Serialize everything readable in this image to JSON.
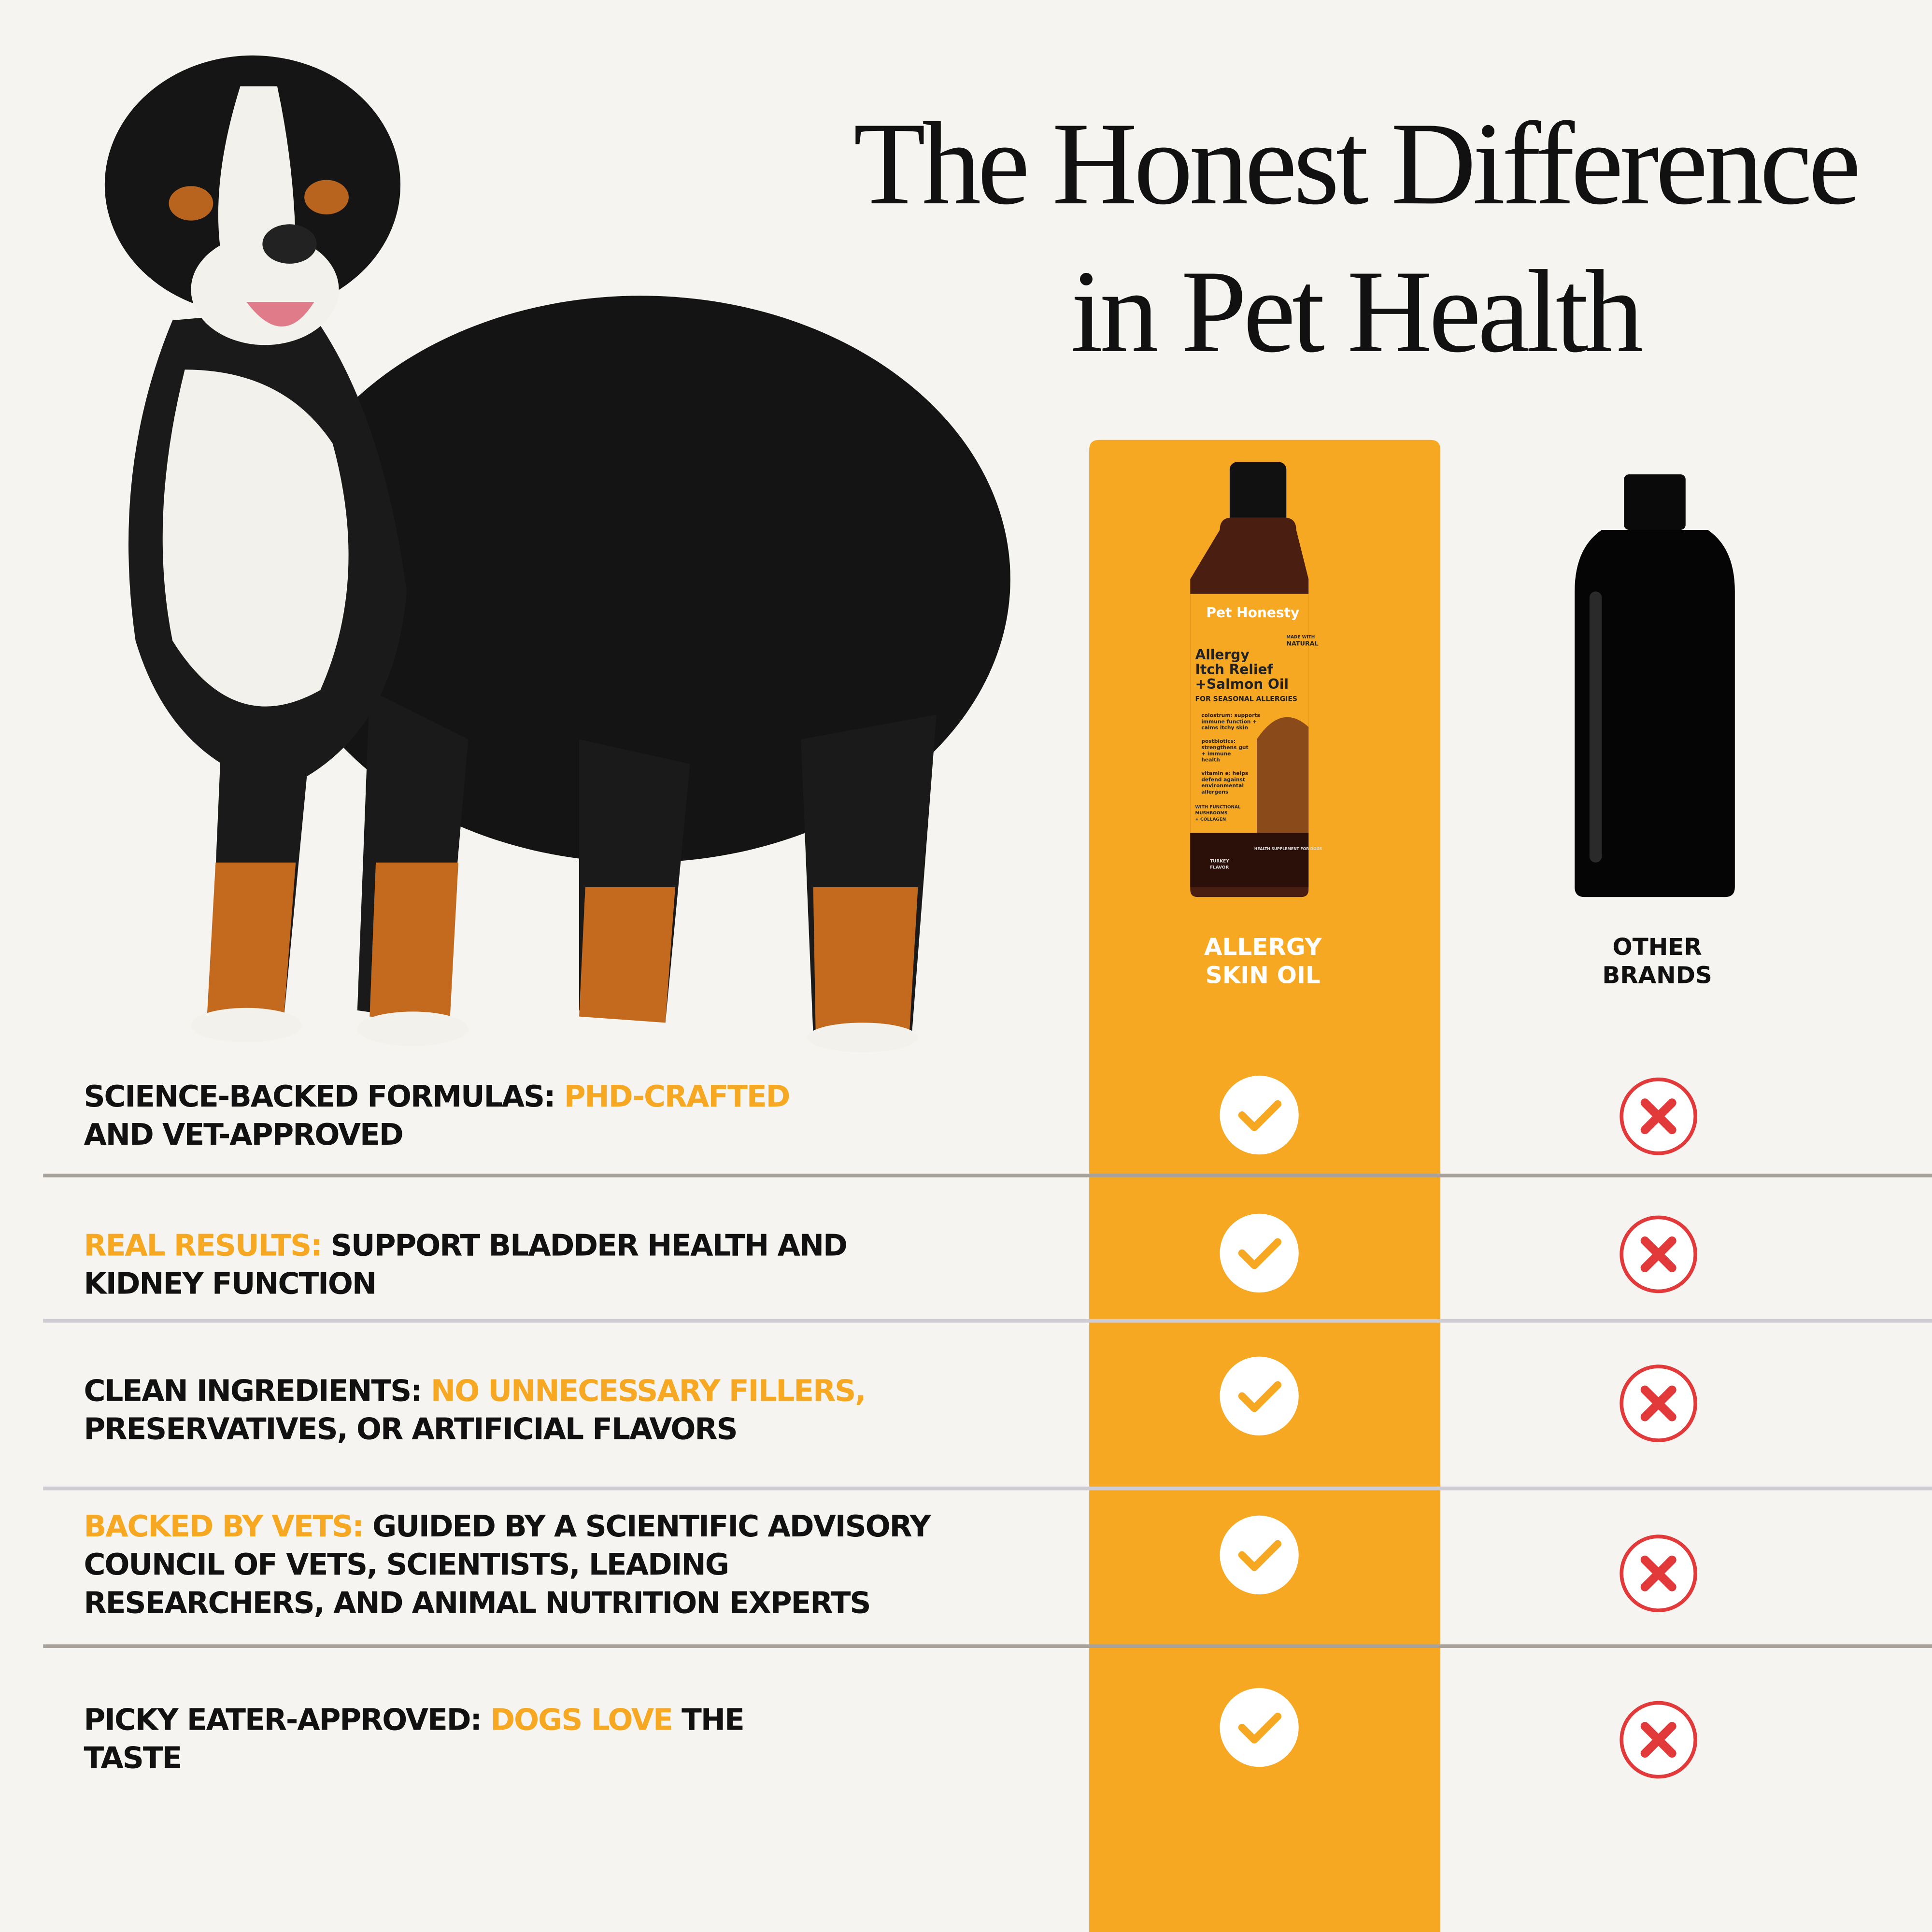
{
  "title": [
    "The Honest Difference",
    "in Pet Health"
  ],
  "accent_color": "#f7a823",
  "columns": [
    {
      "label": [
        "ALLERGY",
        "SKIN OIL"
      ]
    },
    {
      "label": [
        "OTHER",
        "BRANDS"
      ]
    }
  ],
  "product_label": {
    "brand": "Pet Honesty",
    "name": [
      "Allergy",
      "Itch Relief",
      "+Salmon Oil"
    ],
    "subtitle": "FOR SEASONAL ALLERGIES",
    "badge": [
      "MADE WITH",
      "NATURAL"
    ],
    "benefits": [
      [
        "colostrum: supports",
        "immune function +",
        "calms itchy skin"
      ],
      [
        "postbiotics:",
        "strengthens gut",
        "+ immune",
        "health"
      ],
      [
        "vitamin e: helps",
        "defend against",
        "environmental",
        "allergens"
      ]
    ],
    "extras": [
      "WITH FUNCTIONAL",
      "MUSHROOMS",
      "+ COLLAGEN"
    ],
    "flavor": [
      "TURKEY",
      "FLAVOR"
    ],
    "footer": "HEALTH SUPPLEMENT FOR DOGS"
  },
  "rows": [
    {
      "lines": [
        [
          {
            "text": "SCIENCE-BACKED FORMULAS: ",
            "accent": false
          },
          {
            "text": "PHD-CRAFTED",
            "accent": true
          }
        ],
        [
          {
            "text": "AND VET-APPROVED",
            "accent": false
          }
        ]
      ],
      "ours": true,
      "others": false
    },
    {
      "lines": [
        [
          {
            "text": "REAL RESULTS: ",
            "accent": true
          },
          {
            "text": "SUPPORT BLADDER HEALTH AND",
            "accent": false
          }
        ],
        [
          {
            "text": "KIDNEY FUNCTION",
            "accent": false
          }
        ]
      ],
      "ours": true,
      "others": false
    },
    {
      "lines": [
        [
          {
            "text": "CLEAN INGREDIENTS: ",
            "accent": false
          },
          {
            "text": "NO UNNECESSARY FILLERS,",
            "accent": true
          }
        ],
        [
          {
            "text": "PRESERVATIVES, OR ARTIFICIAL FLAVORS",
            "accent": false
          }
        ]
      ],
      "ours": true,
      "others": false
    },
    {
      "lines": [
        [
          {
            "text": "BACKED BY VETS: ",
            "accent": true
          },
          {
            "text": "GUIDED BY A SCIENTIFIC ADVISORY",
            "accent": false
          }
        ],
        [
          {
            "text": "COUNCIL OF VETS, SCIENTISTS, LEADING",
            "accent": false
          }
        ],
        [
          {
            "text": "RESEARCHERS, AND ANIMAL NUTRITION EXPERTS",
            "accent": false
          }
        ]
      ],
      "ours": true,
      "others": false
    },
    {
      "lines": [
        [
          {
            "text": "PICKY EATER-APPROVED: ",
            "accent": false
          },
          {
            "text": "DOGS LOVE",
            "accent": true
          },
          {
            "text": " THE",
            "accent": false
          }
        ],
        [
          {
            "text": "TASTE",
            "accent": false
          }
        ]
      ],
      "ours": true,
      "others": false
    }
  ]
}
